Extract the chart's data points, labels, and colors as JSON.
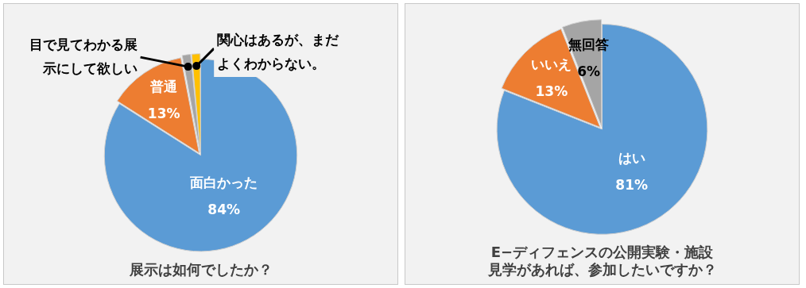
{
  "chart_data": [
    {
      "type": "pie",
      "title": "展示は如何でしたか？",
      "categories": [
        "面白かった",
        "普通",
        "目で見てわかる展示にして欲しい",
        "関心はあるが、まだよくわからない。"
      ],
      "values": [
        84,
        13,
        1.5,
        1.5
      ],
      "colors": [
        "#5b9bd5",
        "#ed7d31",
        "#a5a5a5",
        "#ffc000"
      ],
      "value_labels": [
        "84%",
        "13%",
        null,
        null
      ]
    },
    {
      "type": "pie",
      "title": "E−ディフェンスの公開実験・施設見学があれば、参加したいですか？",
      "categories": [
        "はい",
        "いいえ",
        "無回答"
      ],
      "values": [
        81,
        13,
        6
      ],
      "colors": [
        "#5b9bd5",
        "#ed7d31",
        "#a5a5a5"
      ],
      "value_labels": [
        "81%",
        "13%",
        "6%"
      ]
    }
  ]
}
